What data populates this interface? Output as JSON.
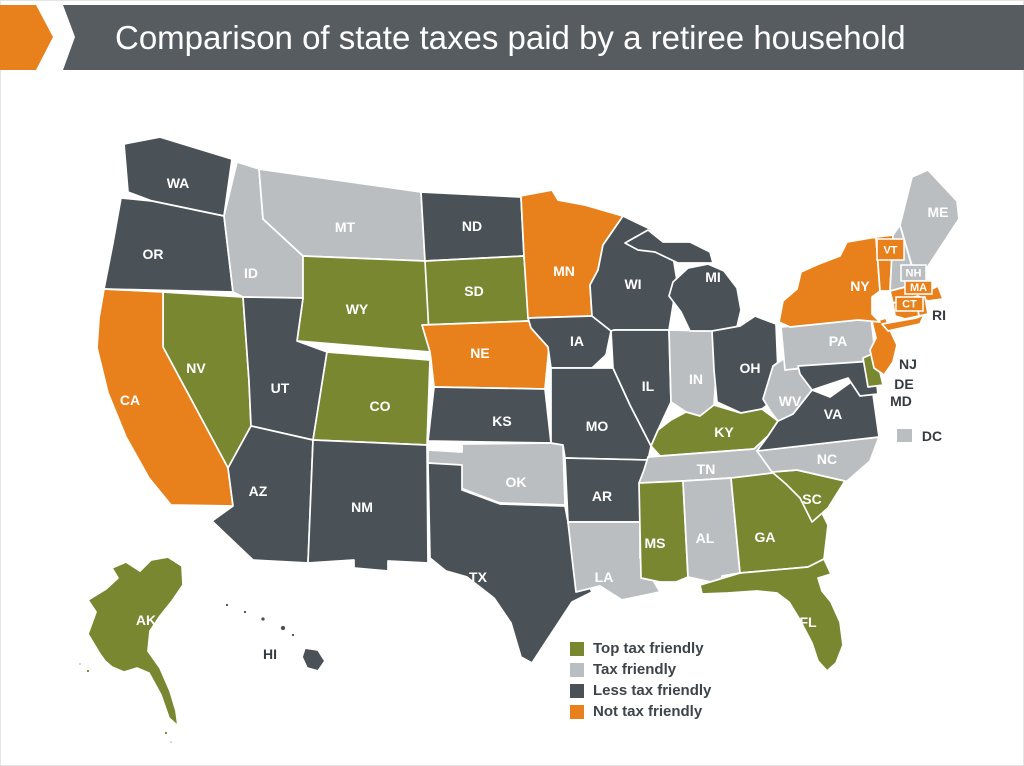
{
  "header": {
    "title": "Comparison of state taxes paid by a retiree household",
    "arrow_color": "#E8811C",
    "bar_color": "#575C60"
  },
  "legend": {
    "items": [
      {
        "key": "top",
        "label": "Top tax friendly",
        "color": "#7A8731"
      },
      {
        "key": "friendly",
        "label": "Tax friendly",
        "color": "#BBBEC1"
      },
      {
        "key": "less",
        "label": "Less tax friendly",
        "color": "#4A5157"
      },
      {
        "key": "not",
        "label": "Not tax friendly",
        "color": "#E8811C"
      }
    ]
  },
  "map": {
    "border_color": "#FFFFFF",
    "states": [
      {
        "abbr": "WA",
        "category": "less"
      },
      {
        "abbr": "OR",
        "category": "less"
      },
      {
        "abbr": "CA",
        "category": "not"
      },
      {
        "abbr": "NV",
        "category": "top"
      },
      {
        "abbr": "ID",
        "category": "friendly"
      },
      {
        "abbr": "MT",
        "category": "friendly"
      },
      {
        "abbr": "WY",
        "category": "top"
      },
      {
        "abbr": "UT",
        "category": "less"
      },
      {
        "abbr": "CO",
        "category": "top"
      },
      {
        "abbr": "AZ",
        "category": "less"
      },
      {
        "abbr": "NM",
        "category": "less"
      },
      {
        "abbr": "ND",
        "category": "less"
      },
      {
        "abbr": "SD",
        "category": "top"
      },
      {
        "abbr": "NE",
        "category": "not"
      },
      {
        "abbr": "KS",
        "category": "less"
      },
      {
        "abbr": "OK",
        "category": "friendly"
      },
      {
        "abbr": "TX",
        "category": "less"
      },
      {
        "abbr": "MN",
        "category": "not"
      },
      {
        "abbr": "IA",
        "category": "less"
      },
      {
        "abbr": "MO",
        "category": "less"
      },
      {
        "abbr": "AR",
        "category": "less"
      },
      {
        "abbr": "LA",
        "category": "friendly"
      },
      {
        "abbr": "WI",
        "category": "less"
      },
      {
        "abbr": "IL",
        "category": "less"
      },
      {
        "abbr": "IN",
        "category": "friendly"
      },
      {
        "abbr": "MI",
        "category": "less"
      },
      {
        "abbr": "OH",
        "category": "less"
      },
      {
        "abbr": "KY",
        "category": "top"
      },
      {
        "abbr": "TN",
        "category": "friendly"
      },
      {
        "abbr": "MS",
        "category": "top"
      },
      {
        "abbr": "AL",
        "category": "friendly"
      },
      {
        "abbr": "GA",
        "category": "top"
      },
      {
        "abbr": "SC",
        "category": "top"
      },
      {
        "abbr": "NC",
        "category": "friendly"
      },
      {
        "abbr": "VA",
        "category": "less"
      },
      {
        "abbr": "WV",
        "category": "friendly"
      },
      {
        "abbr": "PA",
        "category": "friendly"
      },
      {
        "abbr": "NY",
        "category": "not"
      },
      {
        "abbr": "NJ",
        "category": "not"
      },
      {
        "abbr": "DE",
        "category": "top"
      },
      {
        "abbr": "MD",
        "category": "less"
      },
      {
        "abbr": "VT",
        "category": "not"
      },
      {
        "abbr": "NH",
        "category": "friendly"
      },
      {
        "abbr": "ME",
        "category": "friendly"
      },
      {
        "abbr": "MA",
        "category": "not"
      },
      {
        "abbr": "CT",
        "category": "not"
      },
      {
        "abbr": "RI",
        "category": "not"
      },
      {
        "abbr": "DC",
        "category": "friendly"
      },
      {
        "abbr": "FL",
        "category": "top"
      },
      {
        "abbr": "AK",
        "category": "top"
      },
      {
        "abbr": "HI",
        "category": "less"
      }
    ]
  }
}
